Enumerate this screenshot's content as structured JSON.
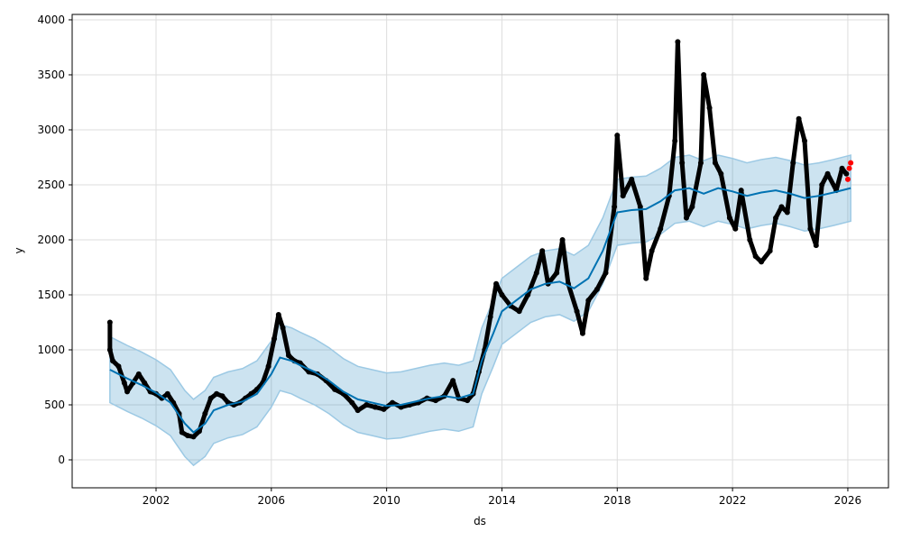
{
  "chart_data": {
    "type": "line",
    "title": "",
    "xlabel": "ds",
    "ylabel": "y",
    "xlim": [
      1999.09,
      2027.41
    ],
    "ylim": [
      -254,
      4049
    ],
    "grid": true,
    "x_ticks": [
      2002,
      2006,
      2010,
      2014,
      2018,
      2022,
      2026
    ],
    "x_tick_labels": [
      "2002",
      "2006",
      "2010",
      "2014",
      "2018",
      "2022",
      "2026"
    ],
    "y_ticks": [
      0,
      500,
      1000,
      1500,
      2000,
      2500,
      3000,
      3500,
      4000
    ],
    "y_tick_labels": [
      "0",
      "500",
      "1000",
      "1500",
      "2000",
      "2500",
      "3000",
      "3500",
      "4000"
    ],
    "colors": {
      "forecast": "#0072B2",
      "interval": "#0072B2",
      "actual": "#000000",
      "recent": "#ff0000"
    },
    "forecast": {
      "x": [
        2000.4,
        2001,
        2001.5,
        2002,
        2002.5,
        2003,
        2003.3,
        2003.7,
        2004,
        2004.5,
        2005,
        2005.5,
        2006,
        2006.3,
        2006.7,
        2007,
        2007.5,
        2008,
        2008.5,
        2009,
        2009.5,
        2010,
        2010.5,
        2011,
        2011.5,
        2012,
        2012.5,
        2013,
        2013.3,
        2013.7,
        2014,
        2014.5,
        2015,
        2015.5,
        2016,
        2016.5,
        2017,
        2017.5,
        2018,
        2018.5,
        2019,
        2019.5,
        2020,
        2020.5,
        2021,
        2021.5,
        2022,
        2022.5,
        2023,
        2023.5,
        2024,
        2024.5,
        2025,
        2025.5,
        2026.1
      ],
      "yhat": [
        820,
        740,
        680,
        610,
        520,
        330,
        250,
        330,
        450,
        500,
        530,
        600,
        780,
        930,
        900,
        860,
        800,
        720,
        620,
        550,
        520,
        490,
        500,
        530,
        560,
        580,
        560,
        600,
        900,
        1150,
        1350,
        1450,
        1550,
        1600,
        1620,
        1560,
        1650,
        1900,
        2250,
        2270,
        2280,
        2350,
        2450,
        2470,
        2420,
        2470,
        2440,
        2400,
        2430,
        2450,
        2420,
        2380,
        2400,
        2430,
        2470
      ],
      "interval_halfwidth": 300
    },
    "actual": [
      [
        2000.4,
        1250
      ],
      [
        2000.4,
        1000
      ],
      [
        2000.5,
        900
      ],
      [
        2000.7,
        850
      ],
      [
        2000.9,
        700
      ],
      [
        2001.0,
        620
      ],
      [
        2001.2,
        700
      ],
      [
        2001.4,
        780
      ],
      [
        2001.6,
        700
      ],
      [
        2001.8,
        620
      ],
      [
        2002.0,
        600
      ],
      [
        2002.2,
        560
      ],
      [
        2002.4,
        600
      ],
      [
        2002.6,
        520
      ],
      [
        2002.8,
        420
      ],
      [
        2002.9,
        250
      ],
      [
        2003.1,
        220
      ],
      [
        2003.3,
        210
      ],
      [
        2003.5,
        260
      ],
      [
        2003.7,
        420
      ],
      [
        2003.9,
        560
      ],
      [
        2004.1,
        600
      ],
      [
        2004.3,
        580
      ],
      [
        2004.5,
        520
      ],
      [
        2004.7,
        500
      ],
      [
        2004.9,
        520
      ],
      [
        2005.1,
        560
      ],
      [
        2005.3,
        600
      ],
      [
        2005.5,
        640
      ],
      [
        2005.7,
        700
      ],
      [
        2005.9,
        850
      ],
      [
        2006.1,
        1100
      ],
      [
        2006.25,
        1320
      ],
      [
        2006.4,
        1200
      ],
      [
        2006.6,
        950
      ],
      [
        2006.8,
        900
      ],
      [
        2007.0,
        880
      ],
      [
        2007.3,
        800
      ],
      [
        2007.6,
        780
      ],
      [
        2007.9,
        720
      ],
      [
        2008.2,
        640
      ],
      [
        2008.5,
        600
      ],
      [
        2008.8,
        520
      ],
      [
        2009.0,
        450
      ],
      [
        2009.3,
        500
      ],
      [
        2009.6,
        480
      ],
      [
        2009.9,
        460
      ],
      [
        2010.2,
        520
      ],
      [
        2010.5,
        480
      ],
      [
        2010.8,
        500
      ],
      [
        2011.1,
        520
      ],
      [
        2011.4,
        560
      ],
      [
        2011.7,
        540
      ],
      [
        2012.0,
        580
      ],
      [
        2012.3,
        720
      ],
      [
        2012.5,
        560
      ],
      [
        2012.8,
        540
      ],
      [
        2013.0,
        600
      ],
      [
        2013.2,
        800
      ],
      [
        2013.4,
        1000
      ],
      [
        2013.6,
        1300
      ],
      [
        2013.8,
        1600
      ],
      [
        2014.0,
        1500
      ],
      [
        2014.3,
        1400
      ],
      [
        2014.6,
        1350
      ],
      [
        2014.9,
        1500
      ],
      [
        2015.2,
        1700
      ],
      [
        2015.4,
        1900
      ],
      [
        2015.6,
        1600
      ],
      [
        2015.9,
        1700
      ],
      [
        2016.1,
        2000
      ],
      [
        2016.3,
        1600
      ],
      [
        2016.6,
        1350
      ],
      [
        2016.8,
        1150
      ],
      [
        2017.0,
        1450
      ],
      [
        2017.3,
        1550
      ],
      [
        2017.6,
        1700
      ],
      [
        2017.9,
        2300
      ],
      [
        2018.0,
        2950
      ],
      [
        2018.2,
        2400
      ],
      [
        2018.5,
        2550
      ],
      [
        2018.8,
        2300
      ],
      [
        2019.0,
        1650
      ],
      [
        2019.2,
        1900
      ],
      [
        2019.5,
        2100
      ],
      [
        2019.8,
        2400
      ],
      [
        2020.0,
        2900
      ],
      [
        2020.1,
        3800
      ],
      [
        2020.25,
        2700
      ],
      [
        2020.4,
        2200
      ],
      [
        2020.6,
        2300
      ],
      [
        2020.9,
        2700
      ],
      [
        2021.0,
        3500
      ],
      [
        2021.2,
        3200
      ],
      [
        2021.4,
        2700
      ],
      [
        2021.6,
        2600
      ],
      [
        2021.9,
        2200
      ],
      [
        2022.1,
        2100
      ],
      [
        2022.3,
        2450
      ],
      [
        2022.6,
        2000
      ],
      [
        2022.8,
        1850
      ],
      [
        2023.0,
        1800
      ],
      [
        2023.3,
        1900
      ],
      [
        2023.5,
        2200
      ],
      [
        2023.7,
        2300
      ],
      [
        2023.9,
        2250
      ],
      [
        2024.1,
        2700
      ],
      [
        2024.3,
        3100
      ],
      [
        2024.5,
        2900
      ],
      [
        2024.7,
        2100
      ],
      [
        2024.9,
        1950
      ],
      [
        2025.1,
        2500
      ],
      [
        2025.3,
        2600
      ],
      [
        2025.6,
        2450
      ],
      [
        2025.8,
        2650
      ],
      [
        2025.95,
        2600
      ]
    ],
    "recent": [
      [
        2026.0,
        2550
      ],
      [
        2026.05,
        2650
      ],
      [
        2026.1,
        2700
      ]
    ]
  }
}
